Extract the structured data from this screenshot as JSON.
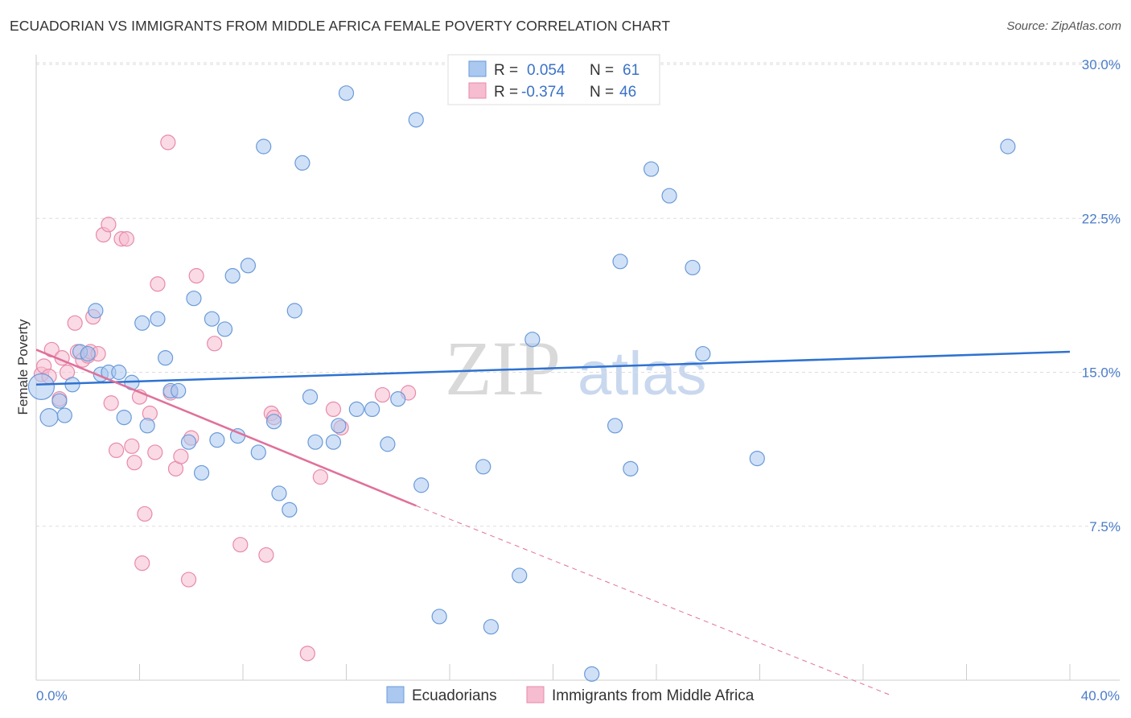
{
  "header": {
    "title": "ECUADORIAN VS IMMIGRANTS FROM MIDDLE AFRICA FEMALE POVERTY CORRELATION CHART",
    "source": "Source: ZipAtlas.com"
  },
  "watermark": {
    "zip": "ZIP",
    "atlas": "atlas"
  },
  "colors": {
    "blue_fill": "#aac8f0",
    "blue_stroke": "#6a9ad8",
    "blue_line": "#2f72d0",
    "pink_fill": "#f6bcd0",
    "pink_stroke": "#e88aaa",
    "pink_line": "#e0709a",
    "grid": "#dddddd",
    "axis_text": "#4a7cc9"
  },
  "legend": {
    "rows": [
      {
        "r_label": "R =",
        "r_value": "0.054",
        "n_label": "N =",
        "n_value": "61"
      },
      {
        "r_label": "R =",
        "r_value": "-0.374",
        "n_label": "N =",
        "n_value": "46"
      }
    ]
  },
  "chart_data": {
    "type": "scatter",
    "title": "ECUADORIAN VS IMMIGRANTS FROM MIDDLE AFRICA FEMALE POVERTY CORRELATION CHART",
    "xlabel": "",
    "ylabel": "Female Poverty",
    "xlim": [
      0,
      40
    ],
    "ylim": [
      0,
      31
    ],
    "x_tick_labels": [
      "0.0%",
      "40.0%"
    ],
    "y_ticks": [
      7.5,
      15.0,
      22.5,
      30.0
    ],
    "y_tick_labels": [
      "7.5%",
      "15.0%",
      "22.5%",
      "30.0%"
    ],
    "grid": true,
    "legend_position": "top-center",
    "series": [
      {
        "name": "Ecuadorians",
        "color": "#aac8f0",
        "r": 0.054,
        "n": 61,
        "trend": {
          "x": [
            0,
            40
          ],
          "y": [
            14.4,
            16.0
          ]
        },
        "points": [
          {
            "x": 0.2,
            "y": 14.3,
            "s": 16
          },
          {
            "x": 0.5,
            "y": 12.8,
            "s": 11
          },
          {
            "x": 0.9,
            "y": 13.6,
            "s": 9
          },
          {
            "x": 1.1,
            "y": 12.9,
            "s": 9
          },
          {
            "x": 1.4,
            "y": 14.4,
            "s": 9
          },
          {
            "x": 1.7,
            "y": 16.0,
            "s": 9
          },
          {
            "x": 2.0,
            "y": 15.9,
            "s": 9
          },
          {
            "x": 2.3,
            "y": 18.0,
            "s": 9
          },
          {
            "x": 2.5,
            "y": 14.9,
            "s": 9
          },
          {
            "x": 2.8,
            "y": 15.0,
            "s": 9
          },
          {
            "x": 3.2,
            "y": 15.0,
            "s": 9
          },
          {
            "x": 3.4,
            "y": 12.8,
            "s": 9
          },
          {
            "x": 3.7,
            "y": 14.5,
            "s": 9
          },
          {
            "x": 4.1,
            "y": 17.4,
            "s": 9
          },
          {
            "x": 4.3,
            "y": 12.4,
            "s": 9
          },
          {
            "x": 4.7,
            "y": 17.6,
            "s": 9
          },
          {
            "x": 5.0,
            "y": 15.7,
            "s": 9
          },
          {
            "x": 5.2,
            "y": 14.1,
            "s": 9
          },
          {
            "x": 5.5,
            "y": 14.1,
            "s": 9
          },
          {
            "x": 5.9,
            "y": 11.6,
            "s": 9
          },
          {
            "x": 6.1,
            "y": 18.6,
            "s": 9
          },
          {
            "x": 6.4,
            "y": 10.1,
            "s": 9
          },
          {
            "x": 6.8,
            "y": 17.6,
            "s": 9
          },
          {
            "x": 7.0,
            "y": 11.7,
            "s": 9
          },
          {
            "x": 7.3,
            "y": 17.1,
            "s": 9
          },
          {
            "x": 7.6,
            "y": 19.7,
            "s": 9
          },
          {
            "x": 7.8,
            "y": 11.9,
            "s": 9
          },
          {
            "x": 8.2,
            "y": 20.2,
            "s": 9
          },
          {
            "x": 8.6,
            "y": 11.1,
            "s": 9
          },
          {
            "x": 8.8,
            "y": 26.0,
            "s": 9
          },
          {
            "x": 9.2,
            "y": 12.6,
            "s": 9
          },
          {
            "x": 9.4,
            "y": 9.1,
            "s": 9
          },
          {
            "x": 9.8,
            "y": 8.3,
            "s": 9
          },
          {
            "x": 10.0,
            "y": 18.0,
            "s": 9
          },
          {
            "x": 10.3,
            "y": 25.2,
            "s": 9
          },
          {
            "x": 10.6,
            "y": 13.8,
            "s": 9
          },
          {
            "x": 10.8,
            "y": 11.6,
            "s": 9
          },
          {
            "x": 11.5,
            "y": 11.6,
            "s": 9
          },
          {
            "x": 11.7,
            "y": 12.4,
            "s": 9
          },
          {
            "x": 12.0,
            "y": 28.6,
            "s": 9
          },
          {
            "x": 12.4,
            "y": 13.2,
            "s": 9
          },
          {
            "x": 13.0,
            "y": 13.2,
            "s": 9
          },
          {
            "x": 13.6,
            "y": 11.5,
            "s": 9
          },
          {
            "x": 14.0,
            "y": 13.7,
            "s": 9
          },
          {
            "x": 14.7,
            "y": 27.3,
            "s": 9
          },
          {
            "x": 14.9,
            "y": 9.5,
            "s": 9
          },
          {
            "x": 15.6,
            "y": 3.1,
            "s": 9
          },
          {
            "x": 17.3,
            "y": 10.4,
            "s": 9
          },
          {
            "x": 17.6,
            "y": 2.6,
            "s": 9
          },
          {
            "x": 18.7,
            "y": 5.1,
            "s": 9
          },
          {
            "x": 19.2,
            "y": 16.6,
            "s": 9
          },
          {
            "x": 21.5,
            "y": 0.3,
            "s": 9
          },
          {
            "x": 22.4,
            "y": 12.4,
            "s": 9
          },
          {
            "x": 22.6,
            "y": 20.4,
            "s": 9
          },
          {
            "x": 23.0,
            "y": 10.3,
            "s": 9
          },
          {
            "x": 23.8,
            "y": 24.9,
            "s": 9
          },
          {
            "x": 24.5,
            "y": 23.6,
            "s": 9
          },
          {
            "x": 25.4,
            "y": 20.1,
            "s": 9
          },
          {
            "x": 25.8,
            "y": 15.9,
            "s": 9
          },
          {
            "x": 27.9,
            "y": 10.8,
            "s": 9
          },
          {
            "x": 37.6,
            "y": 26.0,
            "s": 9
          }
        ]
      },
      {
        "name": "Immigrants from Middle Africa",
        "color": "#f6bcd0",
        "r": -0.374,
        "n": 46,
        "trend": {
          "x": [
            0,
            14.7
          ],
          "y": [
            16.1,
            8.5
          ]
        },
        "trend_extension": {
          "x": [
            14.7,
            33.0
          ],
          "y": [
            8.5,
            -0.7
          ]
        },
        "points": [
          {
            "x": 0.2,
            "y": 14.9,
            "s": 9
          },
          {
            "x": 0.3,
            "y": 15.3,
            "s": 9
          },
          {
            "x": 0.5,
            "y": 14.8,
            "s": 9
          },
          {
            "x": 0.6,
            "y": 16.1,
            "s": 9
          },
          {
            "x": 0.9,
            "y": 13.7,
            "s": 9
          },
          {
            "x": 1.0,
            "y": 15.7,
            "s": 9
          },
          {
            "x": 1.2,
            "y": 15.0,
            "s": 9
          },
          {
            "x": 1.5,
            "y": 17.4,
            "s": 9
          },
          {
            "x": 1.6,
            "y": 16.0,
            "s": 9
          },
          {
            "x": 1.8,
            "y": 15.6,
            "s": 9
          },
          {
            "x": 2.0,
            "y": 15.8,
            "s": 9
          },
          {
            "x": 2.1,
            "y": 16.0,
            "s": 9
          },
          {
            "x": 2.2,
            "y": 17.7,
            "s": 9
          },
          {
            "x": 2.4,
            "y": 15.9,
            "s": 9
          },
          {
            "x": 2.6,
            "y": 21.7,
            "s": 9
          },
          {
            "x": 2.8,
            "y": 22.2,
            "s": 9
          },
          {
            "x": 2.9,
            "y": 13.5,
            "s": 9
          },
          {
            "x": 3.1,
            "y": 11.2,
            "s": 9
          },
          {
            "x": 3.3,
            "y": 21.5,
            "s": 9
          },
          {
            "x": 3.5,
            "y": 21.5,
            "s": 9
          },
          {
            "x": 3.7,
            "y": 11.4,
            "s": 9
          },
          {
            "x": 3.8,
            "y": 10.6,
            "s": 9
          },
          {
            "x": 4.0,
            "y": 13.8,
            "s": 9
          },
          {
            "x": 4.1,
            "y": 5.7,
            "s": 9
          },
          {
            "x": 4.2,
            "y": 8.1,
            "s": 9
          },
          {
            "x": 4.4,
            "y": 13.0,
            "s": 9
          },
          {
            "x": 4.6,
            "y": 11.1,
            "s": 9
          },
          {
            "x": 4.7,
            "y": 19.3,
            "s": 9
          },
          {
            "x": 5.1,
            "y": 26.2,
            "s": 9
          },
          {
            "x": 5.2,
            "y": 14.0,
            "s": 9
          },
          {
            "x": 5.4,
            "y": 10.3,
            "s": 9
          },
          {
            "x": 5.6,
            "y": 10.9,
            "s": 9
          },
          {
            "x": 5.9,
            "y": 4.9,
            "s": 9
          },
          {
            "x": 6.0,
            "y": 11.8,
            "s": 9
          },
          {
            "x": 6.2,
            "y": 19.7,
            "s": 9
          },
          {
            "x": 6.9,
            "y": 16.4,
            "s": 9
          },
          {
            "x": 7.9,
            "y": 6.6,
            "s": 9
          },
          {
            "x": 8.9,
            "y": 6.1,
            "s": 9
          },
          {
            "x": 9.1,
            "y": 13.0,
            "s": 9
          },
          {
            "x": 9.2,
            "y": 12.8,
            "s": 9
          },
          {
            "x": 10.5,
            "y": 1.3,
            "s": 9
          },
          {
            "x": 11.0,
            "y": 9.9,
            "s": 9
          },
          {
            "x": 11.5,
            "y": 13.2,
            "s": 9
          },
          {
            "x": 11.8,
            "y": 12.3,
            "s": 9
          },
          {
            "x": 14.4,
            "y": 14.0,
            "s": 9
          },
          {
            "x": 13.4,
            "y": 13.9,
            "s": 9
          }
        ]
      }
    ]
  }
}
